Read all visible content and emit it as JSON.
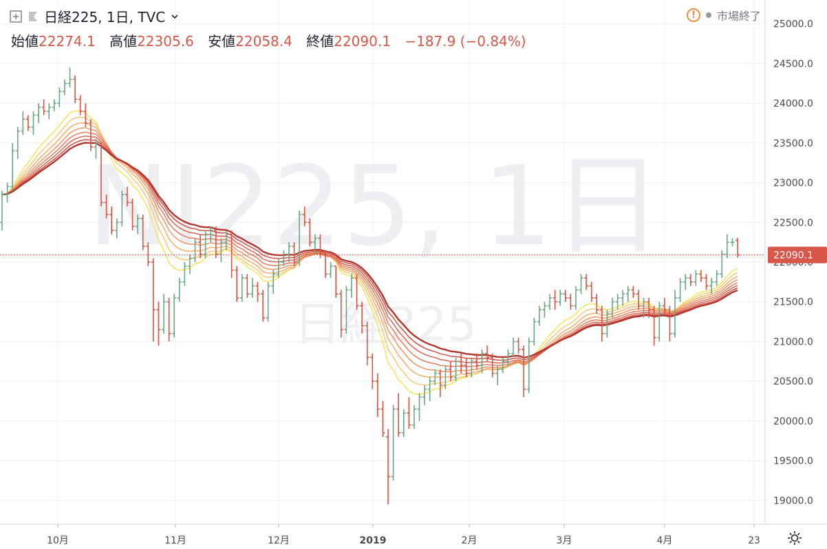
{
  "header": {
    "symbol_title": "日経225, 1日, TVC",
    "ohlc": {
      "open_label": "始値",
      "open": "22274.1",
      "high_label": "高値",
      "high": "22305.6",
      "low_label": "安値",
      "low": "22058.4",
      "close_label": "終値",
      "close": "22090.1",
      "change": "−187.9 (−0.84%)"
    },
    "market_status": "市場終了"
  },
  "watermark": {
    "line1": "NI225, 1日",
    "line2": "日経225"
  },
  "colors": {
    "up": "#6ba583",
    "down": "#d75442",
    "price_label": "#d9574a",
    "grid": "#eef0f3",
    "axis_text": "#4a4a4a"
  },
  "chart_data": {
    "type": "candlestick",
    "y_axis": {
      "min": 18700,
      "max": 25300,
      "ticks": [
        19000,
        19500,
        20000,
        20500,
        21000,
        21500,
        22000,
        22500,
        23000,
        23500,
        24000,
        24500,
        25000
      ]
    },
    "x_axis": {
      "labels": [
        "10月",
        "11月",
        "12月",
        "2019",
        "2月",
        "3月",
        "4月",
        "23"
      ]
    },
    "last_price": 22090.1,
    "last_price_label": "22090.1",
    "bars": [
      [
        22500,
        22900,
        22400,
        22850
      ],
      [
        22850,
        23000,
        22750,
        22950
      ],
      [
        22950,
        23500,
        22900,
        23400
      ],
      [
        23400,
        23700,
        23300,
        23650
      ],
      [
        23650,
        23900,
        23600,
        23800
      ],
      [
        23800,
        23850,
        23650,
        23700
      ],
      [
        23700,
        23900,
        23600,
        23850
      ],
      [
        23850,
        24000,
        23750,
        23950
      ],
      [
        23950,
        24050,
        23850,
        23900
      ],
      [
        23900,
        24000,
        23800,
        23950
      ],
      [
        23950,
        24050,
        23900,
        24000
      ],
      [
        24000,
        24200,
        23950,
        24150
      ],
      [
        24150,
        24300,
        24100,
        24250
      ],
      [
        24250,
        24450,
        24200,
        24300
      ],
      [
        24300,
        24350,
        24000,
        24050
      ],
      [
        24050,
        24100,
        23850,
        23900
      ],
      [
        23900,
        24000,
        23700,
        23750
      ],
      [
        23750,
        23800,
        23400,
        23450
      ],
      [
        23450,
        23550,
        23300,
        23500
      ],
      [
        23500,
        23500,
        22700,
        22750
      ],
      [
        22750,
        22850,
        22550,
        22600
      ],
      [
        22600,
        22700,
        22350,
        22400
      ],
      [
        22400,
        22550,
        22300,
        22500
      ],
      [
        22500,
        22900,
        22450,
        22850
      ],
      [
        22850,
        22950,
        22700,
        22750
      ],
      [
        22750,
        22800,
        22400,
        22450
      ],
      [
        22450,
        22600,
        22350,
        22550
      ],
      [
        22550,
        22600,
        22150,
        22200
      ],
      [
        22200,
        22250,
        21950,
        22000
      ],
      [
        22000,
        22050,
        21000,
        21400
      ],
      [
        21400,
        21500,
        20950,
        21150
      ],
      [
        21150,
        21600,
        21100,
        21500
      ],
      [
        21500,
        21550,
        21000,
        21100
      ],
      [
        21100,
        21600,
        21050,
        21550
      ],
      [
        21550,
        21800,
        21500,
        21750
      ],
      [
        21750,
        22000,
        21700,
        21950
      ],
      [
        21950,
        22100,
        21850,
        22050
      ],
      [
        22050,
        22300,
        22000,
        22250
      ],
      [
        22250,
        22350,
        22050,
        22100
      ],
      [
        22100,
        22400,
        22050,
        22350
      ],
      [
        22350,
        22450,
        22250,
        22400
      ],
      [
        22400,
        22450,
        22050,
        22100
      ],
      [
        22100,
        22300,
        22000,
        22250
      ],
      [
        22250,
        22400,
        22150,
        22350
      ],
      [
        22350,
        22400,
        21800,
        21900
      ],
      [
        21900,
        21950,
        21500,
        21550
      ],
      [
        21550,
        21850,
        21500,
        21800
      ],
      [
        21800,
        21850,
        21550,
        21600
      ],
      [
        21600,
        21800,
        21550,
        21700
      ],
      [
        21700,
        21750,
        21500,
        21600
      ],
      [
        21600,
        21650,
        21250,
        21300
      ],
      [
        21300,
        21750,
        21250,
        21700
      ],
      [
        21700,
        21900,
        21600,
        21850
      ],
      [
        21850,
        22050,
        21800,
        22000
      ],
      [
        22000,
        22150,
        21950,
        22100
      ],
      [
        22100,
        22250,
        22000,
        22200
      ],
      [
        22200,
        22250,
        21950,
        22000
      ],
      [
        22000,
        22650,
        21950,
        22600
      ],
      [
        22600,
        22700,
        22450,
        22500
      ],
      [
        22500,
        22550,
        22200,
        22250
      ],
      [
        22250,
        22350,
        22100,
        22300
      ],
      [
        22300,
        22350,
        22050,
        22100
      ],
      [
        22100,
        22150,
        21800,
        21850
      ],
      [
        21850,
        22000,
        21800,
        21950
      ],
      [
        21950,
        21950,
        21550,
        21600
      ],
      [
        21600,
        21650,
        21050,
        21150
      ],
      [
        21150,
        21700,
        21100,
        21650
      ],
      [
        21650,
        21850,
        21550,
        21800
      ],
      [
        21800,
        21850,
        21400,
        21450
      ],
      [
        21450,
        21500,
        21100,
        21200
      ],
      [
        21200,
        21250,
        20700,
        20800
      ],
      [
        20800,
        20850,
        20400,
        20500
      ],
      [
        20500,
        20600,
        20050,
        20150
      ],
      [
        20150,
        20250,
        19800,
        19850
      ],
      [
        19800,
        19900,
        18950,
        19300
      ],
      [
        19300,
        20200,
        19250,
        20150
      ],
      [
        20150,
        20350,
        19800,
        19850
      ],
      [
        19850,
        20150,
        19800,
        20100
      ],
      [
        20100,
        20300,
        19900,
        19950
      ],
      [
        19950,
        20200,
        19900,
        20150
      ],
      [
        20150,
        20350,
        20000,
        20300
      ],
      [
        20300,
        20450,
        20200,
        20400
      ],
      [
        20400,
        20550,
        20250,
        20500
      ],
      [
        20500,
        20650,
        20450,
        20600
      ],
      [
        20600,
        20650,
        20300,
        20450
      ],
      [
        20450,
        20700,
        20400,
        20650
      ],
      [
        20650,
        20750,
        20500,
        20550
      ],
      [
        20550,
        20800,
        20500,
        20750
      ],
      [
        20750,
        20850,
        20600,
        20700
      ],
      [
        20700,
        20800,
        20550,
        20600
      ],
      [
        20600,
        20800,
        20550,
        20750
      ],
      [
        20750,
        20850,
        20650,
        20700
      ],
      [
        20700,
        20900,
        20600,
        20850
      ],
      [
        20850,
        20950,
        20750,
        20800
      ],
      [
        20800,
        20850,
        20550,
        20600
      ],
      [
        20600,
        20700,
        20450,
        20650
      ],
      [
        20650,
        20800,
        20600,
        20750
      ],
      [
        20750,
        20900,
        20700,
        20850
      ],
      [
        20850,
        21050,
        20800,
        21000
      ],
      [
        21000,
        21050,
        20850,
        20900
      ],
      [
        20900,
        20950,
        20300,
        20400
      ],
      [
        20400,
        21050,
        20350,
        21000
      ],
      [
        21000,
        21300,
        20950,
        21250
      ],
      [
        21250,
        21450,
        21200,
        21400
      ],
      [
        21400,
        21500,
        21300,
        21450
      ],
      [
        21450,
        21600,
        21400,
        21550
      ],
      [
        21550,
        21650,
        21400,
        21500
      ],
      [
        21500,
        21650,
        21450,
        21600
      ],
      [
        21600,
        21650,
        21500,
        21550
      ],
      [
        21550,
        21600,
        21400,
        21450
      ],
      [
        21450,
        21700,
        21400,
        21650
      ],
      [
        21650,
        21850,
        21600,
        21800
      ],
      [
        21800,
        21850,
        21650,
        21700
      ],
      [
        21700,
        21750,
        21500,
        21550
      ],
      [
        21550,
        21600,
        21350,
        21400
      ],
      [
        21400,
        21450,
        21000,
        21100
      ],
      [
        21100,
        21400,
        21050,
        21350
      ],
      [
        21350,
        21550,
        21300,
        21500
      ],
      [
        21500,
        21600,
        21400,
        21550
      ],
      [
        21550,
        21650,
        21450,
        21600
      ],
      [
        21600,
        21700,
        21500,
        21650
      ],
      [
        21650,
        21700,
        21550,
        21600
      ],
      [
        21600,
        21650,
        21400,
        21450
      ],
      [
        21450,
        21550,
        21300,
        21500
      ],
      [
        21500,
        21550,
        21300,
        21400
      ],
      [
        21400,
        21450,
        20950,
        21050
      ],
      [
        21050,
        21500,
        21000,
        21450
      ],
      [
        21450,
        21550,
        21350,
        21400
      ],
      [
        21400,
        21450,
        21000,
        21100
      ],
      [
        21100,
        21650,
        21050,
        21550
      ],
      [
        21550,
        21800,
        21500,
        21750
      ],
      [
        21750,
        21850,
        21650,
        21800
      ],
      [
        21800,
        21850,
        21700,
        21750
      ],
      [
        21750,
        21900,
        21700,
        21850
      ],
      [
        21850,
        21900,
        21750,
        21800
      ],
      [
        21800,
        21850,
        21650,
        21700
      ],
      [
        21700,
        21800,
        21600,
        21750
      ],
      [
        21750,
        21900,
        21700,
        21850
      ],
      [
        21850,
        22150,
        21800,
        22100
      ],
      [
        22100,
        22350,
        22050,
        22250
      ],
      [
        22250,
        22300,
        22200,
        22250
      ],
      [
        22274.1,
        22305.6,
        22058.4,
        22090.1
      ]
    ]
  }
}
